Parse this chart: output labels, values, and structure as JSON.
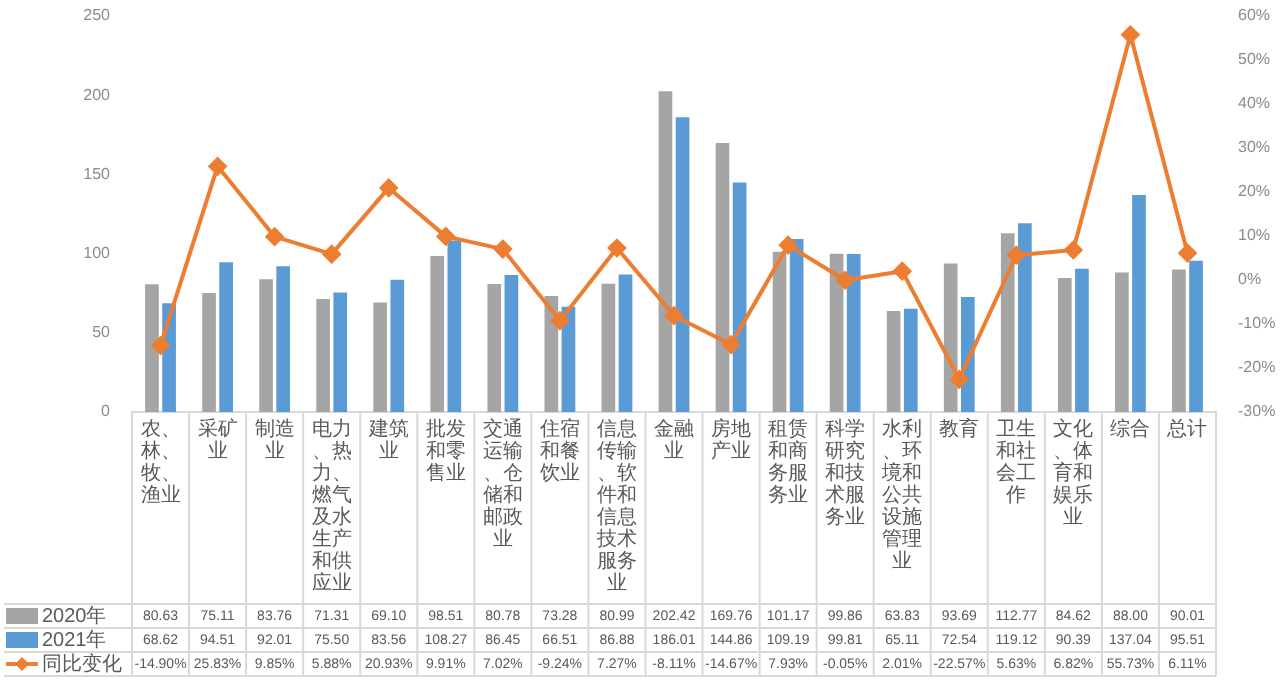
{
  "chart_data": {
    "type": "bar",
    "categories": [
      "农、林、牧、渔业",
      "采矿业",
      "制造业",
      "电力、热力、燃气及水生产和供应业",
      "建筑业",
      "批发和零售业",
      "交通运输、仓储和邮政业",
      "住宿和餐饮业",
      "信息传输、软件和信息技术服务业",
      "金融业",
      "房地产业",
      "租赁和商务服务业",
      "科学研究和技术服务业",
      "水利、环境和公共设施管理业",
      "教育",
      "卫生和社会工作",
      "文化、体育和娱乐业",
      "综合",
      "总计"
    ],
    "series": [
      {
        "name": "2020年",
        "color": "#a5a5a5",
        "values": [
          80.63,
          75.11,
          83.76,
          71.31,
          69.1,
          98.51,
          80.78,
          73.28,
          80.99,
          202.42,
          169.76,
          101.17,
          99.86,
          63.83,
          93.69,
          112.77,
          84.62,
          88.0,
          90.01
        ],
        "value_labels": [
          "80.63",
          "75.11",
          "83.76",
          "71.31",
          "69.10",
          "98.51",
          "80.78",
          "73.28",
          "80.99",
          "202.42",
          "169.76",
          "101.17",
          "99.86",
          "63.83",
          "93.69",
          "112.77",
          "84.62",
          "88.00",
          "90.01"
        ]
      },
      {
        "name": "2021年",
        "color": "#5b9bd5",
        "values": [
          68.62,
          94.51,
          92.01,
          75.5,
          83.56,
          108.27,
          86.45,
          66.51,
          86.88,
          186.01,
          144.86,
          109.19,
          99.81,
          65.11,
          72.54,
          119.12,
          90.39,
          137.04,
          95.51
        ],
        "value_labels": [
          "68.62",
          "94.51",
          "92.01",
          "75.50",
          "83.56",
          "108.27",
          "86.45",
          "66.51",
          "86.88",
          "186.01",
          "144.86",
          "109.19",
          "99.81",
          "65.11",
          "72.54",
          "119.12",
          "90.39",
          "137.04",
          "95.51"
        ]
      },
      {
        "name": "同比变化",
        "type": "line",
        "axis": "y2",
        "color": "#ed7d31",
        "marker": "diamond",
        "values": [
          -14.9,
          25.83,
          9.85,
          5.88,
          20.93,
          9.91,
          7.02,
          -9.24,
          7.27,
          -8.11,
          -14.67,
          7.93,
          -0.05,
          2.01,
          -22.57,
          5.63,
          6.82,
          55.73,
          6.11
        ],
        "value_labels": [
          "-14.90%",
          "25.83%",
          "9.85%",
          "5.88%",
          "20.93%",
          "9.91%",
          "7.02%",
          "-9.24%",
          "7.27%",
          "-8.11%",
          "-14.67%",
          "7.93%",
          "-0.05%",
          "2.01%",
          "-22.57%",
          "5.63%",
          "6.82%",
          "55.73%",
          "6.11%"
        ]
      }
    ],
    "ylim": [
      0,
      250
    ],
    "yticks": [
      0,
      50,
      100,
      150,
      200,
      250
    ],
    "y2lim": [
      -30,
      60
    ],
    "y2ticks": [
      {
        "value": -30,
        "label": "-30%"
      },
      {
        "value": -20,
        "label": "-20%"
      },
      {
        "value": -10,
        "label": "-10%"
      },
      {
        "value": 0,
        "label": "0%"
      },
      {
        "value": 10,
        "label": "10%"
      },
      {
        "value": 20,
        "label": "20%"
      },
      {
        "value": 30,
        "label": "30%"
      },
      {
        "value": 40,
        "label": "40%"
      },
      {
        "value": 50,
        "label": "50%"
      },
      {
        "value": 60,
        "label": "60%"
      }
    ],
    "grid": false,
    "legend": "bottom"
  }
}
